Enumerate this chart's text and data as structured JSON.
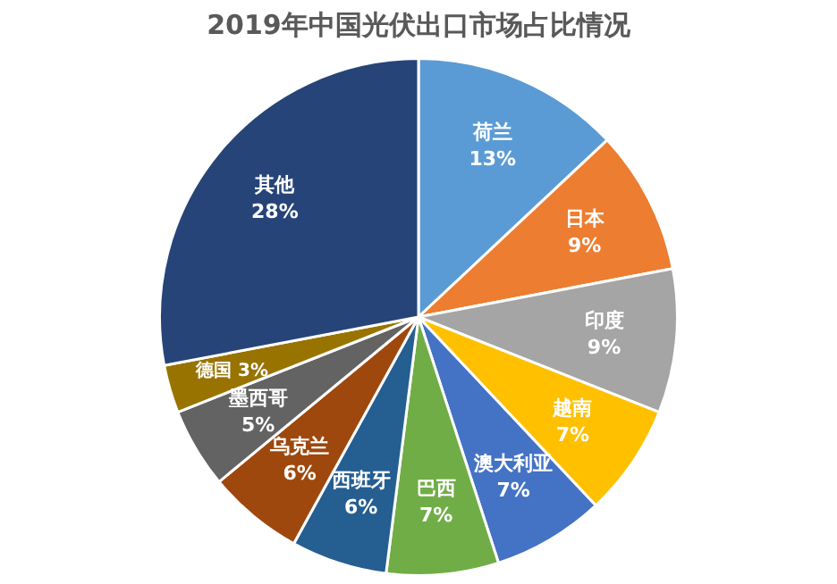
{
  "chart_data": {
    "type": "pie",
    "title": "2019年中国光伏出口市场占比情况",
    "categories": [
      "荷兰",
      "日本",
      "印度",
      "越南",
      "澳大利亚",
      "巴西",
      "西班牙",
      "乌克兰",
      "墨西哥",
      "德国",
      "其他"
    ],
    "values": [
      13,
      9,
      9,
      7,
      7,
      7,
      6,
      6,
      5,
      3,
      28
    ],
    "colors": [
      "#5b9bd5",
      "#ed7d31",
      "#a5a5a5",
      "#ffc000",
      "#4472c4",
      "#70ad47",
      "#255e91",
      "#9e480e",
      "#636363",
      "#997300",
      "#264478"
    ],
    "value_labels": [
      "13%",
      "9%",
      "9%",
      "7%",
      "7%",
      "7%",
      "6%",
      "6%",
      "5%",
      "3%",
      "28%"
    ],
    "legend": false
  }
}
